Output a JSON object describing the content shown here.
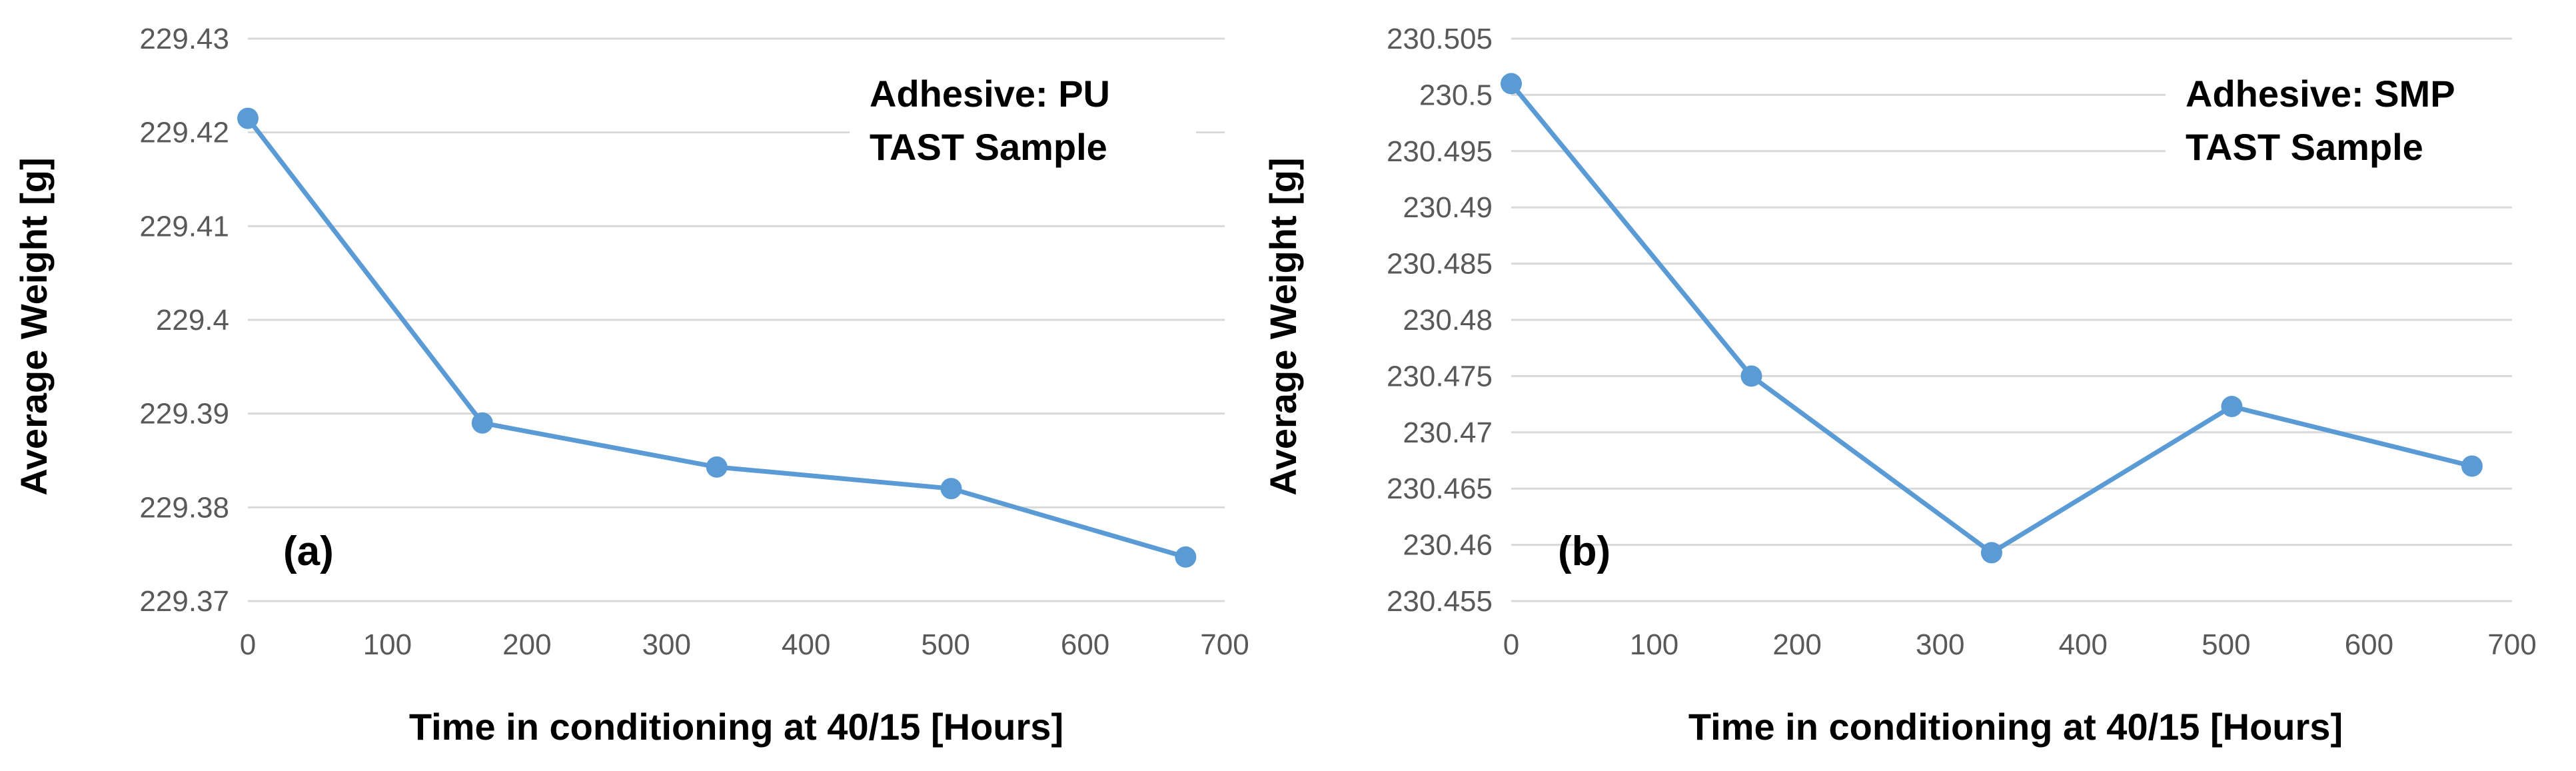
{
  "colors": {
    "series": "#5b9bd5",
    "grid": "#d9d9d9",
    "tick": "#595959"
  },
  "chart_data": [
    {
      "type": "line",
      "panel_label": "(a)",
      "annotation": [
        "Adhesive: PU",
        "TAST Sample"
      ],
      "xlabel": "Time in conditioning at 40/15 [Hours]",
      "ylabel": "Average Weight [g]",
      "xlim": [
        0,
        700
      ],
      "ylim": [
        229.37,
        229.43
      ],
      "x_ticks": [
        "0",
        "100",
        "200",
        "300",
        "400",
        "500",
        "600",
        "700"
      ],
      "y_ticks": [
        "229.37",
        "229.38",
        "229.39",
        "229.4",
        "229.41",
        "229.42",
        "229.43"
      ],
      "grid": true,
      "series": [
        {
          "x": [
            0,
            168,
            336,
            504,
            672
          ],
          "y": [
            229.4215,
            229.389,
            229.3843,
            229.382,
            229.3747
          ]
        }
      ]
    },
    {
      "type": "line",
      "panel_label": "(b)",
      "annotation": [
        "Adhesive: SMP",
        "TAST Sample"
      ],
      "xlabel": "Time in conditioning at 40/15 [Hours]",
      "ylabel": "Average Weight [g]",
      "xlim": [
        0,
        700
      ],
      "ylim": [
        230.455,
        230.505
      ],
      "x_ticks": [
        "0",
        "100",
        "200",
        "300",
        "400",
        "500",
        "600",
        "700"
      ],
      "y_ticks": [
        "230.455",
        "230.46",
        "230.465",
        "230.47",
        "230.475",
        "230.48",
        "230.485",
        "230.49",
        "230.495",
        "230.5",
        "230.505"
      ],
      "grid": true,
      "series": [
        {
          "x": [
            0,
            168,
            336,
            504,
            672
          ],
          "y": [
            230.501,
            230.475,
            230.4593,
            230.4723,
            230.467
          ]
        }
      ]
    }
  ]
}
